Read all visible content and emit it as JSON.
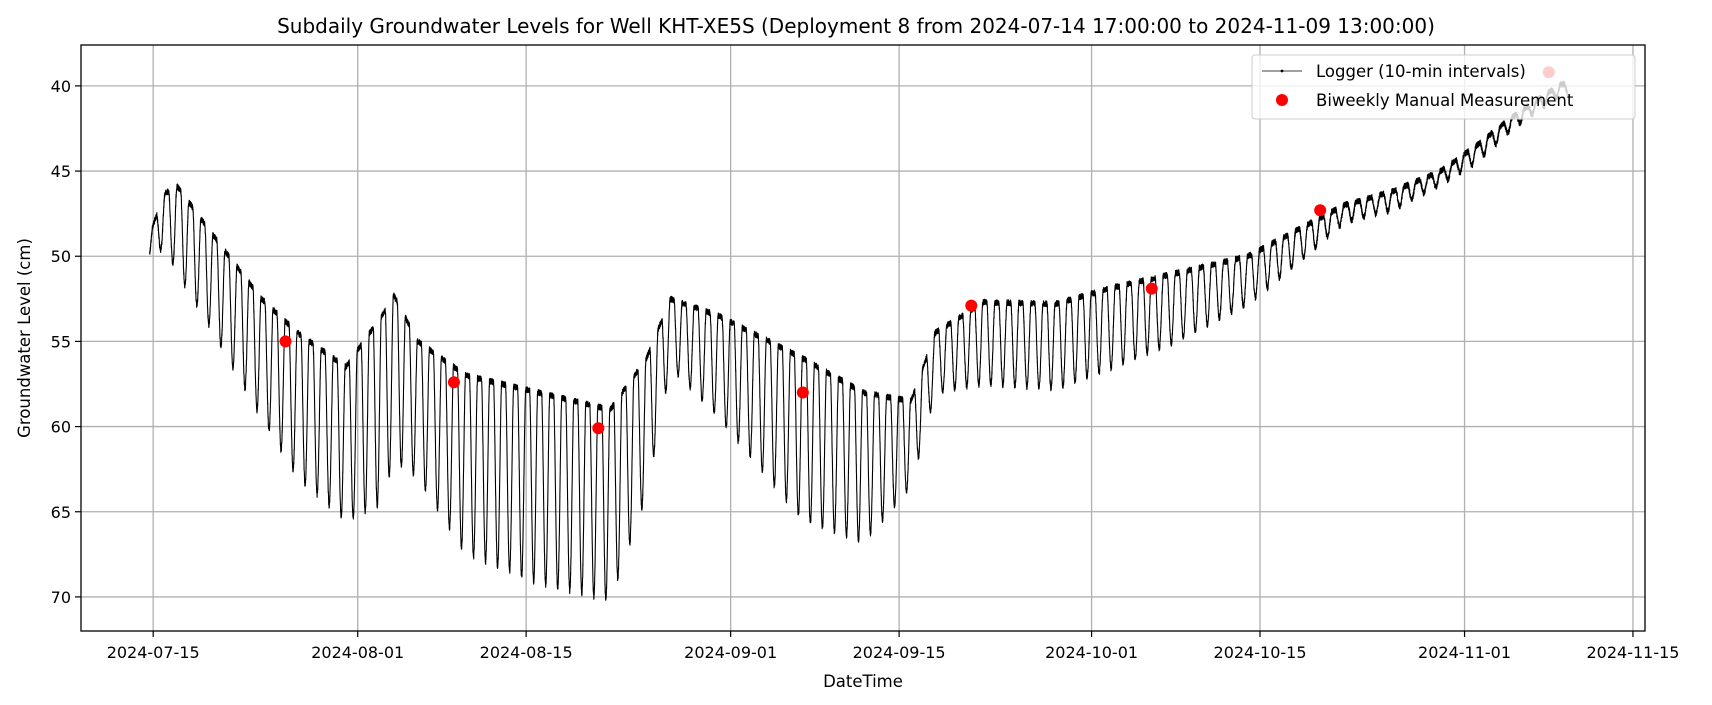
{
  "chart_data": {
    "type": "line",
    "title": "Subdaily Groundwater Levels for Well KHT-XE5S (Deployment 8 from 2024-07-14 17:00:00 to 2024-11-09 13:00:00)",
    "xlabel": "DateTime",
    "ylabel": "Groundwater Level (cm)",
    "x_ticks": [
      "2024-07-15",
      "2024-08-01",
      "2024-08-15",
      "2024-09-01",
      "2024-09-15",
      "2024-10-01",
      "2024-10-15",
      "2024-11-01",
      "2024-11-15"
    ],
    "y_ticks": [
      40,
      45,
      50,
      55,
      60,
      65,
      70
    ],
    "xlim": [
      "2024-07-09",
      "2024-11-16"
    ],
    "ylim": [
      72,
      37.6
    ],
    "y_inverted": true,
    "grid": true,
    "legend_position": "top-right",
    "series": [
      {
        "name": "Logger (10-min intervals)",
        "kind": "line",
        "color": "#000000",
        "interval": "10-min",
        "start": "2024-07-14 17:00",
        "end": "2024-11-09 13:00",
        "daily_trough_level": [
          [
            "2024-07-14",
            50.0
          ],
          [
            "2024-07-16",
            46.3
          ],
          [
            "2024-07-17",
            45.9
          ],
          [
            "2024-07-20",
            48.8
          ],
          [
            "2024-07-24",
            52.5
          ],
          [
            "2024-07-27",
            54.5
          ],
          [
            "2024-07-31",
            56.5
          ],
          [
            "2024-08-03",
            53.5
          ],
          [
            "2024-08-04",
            52.3
          ],
          [
            "2024-08-06",
            55.0
          ],
          [
            "2024-08-10",
            57.0
          ],
          [
            "2024-08-16",
            58.0
          ],
          [
            "2024-08-22",
            59.0
          ],
          [
            "2024-08-25",
            56.0
          ],
          [
            "2024-08-27",
            52.5
          ],
          [
            "2024-08-31",
            53.5
          ],
          [
            "2024-09-07",
            56.0
          ],
          [
            "2024-09-12",
            58.0
          ],
          [
            "2024-09-16",
            58.5
          ],
          [
            "2024-09-18",
            54.5
          ],
          [
            "2024-09-22",
            52.7
          ],
          [
            "2024-09-28",
            52.8
          ],
          [
            "2024-10-03",
            51.8
          ],
          [
            "2024-10-08",
            51.0
          ],
          [
            "2024-10-14",
            50.0
          ],
          [
            "2024-10-18",
            48.5
          ],
          [
            "2024-10-22",
            47.0
          ],
          [
            "2024-10-26",
            46.2
          ],
          [
            "2024-10-30",
            45.0
          ],
          [
            "2024-11-02",
            43.5
          ],
          [
            "2024-11-05",
            41.8
          ],
          [
            "2024-11-09",
            39.9
          ]
        ],
        "daily_drawdown_peak": [
          [
            "2024-07-14",
            50.2
          ],
          [
            "2024-07-16",
            49.5
          ],
          [
            "2024-07-17",
            51.0
          ],
          [
            "2024-07-20",
            54.5
          ],
          [
            "2024-07-24",
            59.5
          ],
          [
            "2024-07-27",
            63.0
          ],
          [
            "2024-07-31",
            65.5
          ],
          [
            "2024-08-03",
            64.5
          ],
          [
            "2024-08-04",
            62.0
          ],
          [
            "2024-08-06",
            63.0
          ],
          [
            "2024-08-10",
            67.5
          ],
          [
            "2024-08-16",
            69.2
          ],
          [
            "2024-08-22",
            70.2
          ],
          [
            "2024-08-25",
            64.0
          ],
          [
            "2024-08-27",
            56.5
          ],
          [
            "2024-08-31",
            59.5
          ],
          [
            "2024-09-07",
            65.5
          ],
          [
            "2024-09-12",
            66.8
          ],
          [
            "2024-09-16",
            63.5
          ],
          [
            "2024-09-18",
            58.0
          ],
          [
            "2024-09-22",
            57.5
          ],
          [
            "2024-09-28",
            57.8
          ],
          [
            "2024-10-03",
            56.5
          ],
          [
            "2024-10-08",
            55.0
          ],
          [
            "2024-10-14",
            52.8
          ],
          [
            "2024-10-18",
            50.5
          ],
          [
            "2024-10-22",
            48.0
          ],
          [
            "2024-10-26",
            47.3
          ],
          [
            "2024-10-30",
            45.8
          ],
          [
            "2024-11-02",
            44.5
          ],
          [
            "2024-11-05",
            42.5
          ],
          [
            "2024-11-09",
            40.5
          ]
        ]
      },
      {
        "name": "Biweekly Manual Measurement",
        "kind": "scatter",
        "color": "#ff0000",
        "points": [
          [
            "2024-07-26",
            55.0
          ],
          [
            "2024-08-09",
            57.4
          ],
          [
            "2024-08-21",
            60.1
          ],
          [
            "2024-09-07",
            58.0
          ],
          [
            "2024-09-21",
            52.9
          ],
          [
            "2024-10-06",
            51.9
          ],
          [
            "2024-10-20",
            47.3
          ],
          [
            "2024-11-08",
            39.2
          ]
        ]
      }
    ]
  }
}
